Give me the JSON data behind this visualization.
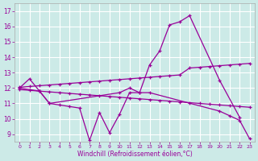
{
  "xlabel": "Windchill (Refroidissement éolien,°C)",
  "background_color": "#cceae7",
  "grid_color": "#ffffff",
  "line_color": "#990099",
  "line1_x": [
    0,
    1,
    2,
    3,
    10,
    11,
    12,
    13,
    14,
    15,
    16,
    17,
    20,
    22
  ],
  "line1_y": [
    12.0,
    12.6,
    11.8,
    11.0,
    11.7,
    12.0,
    11.7,
    13.5,
    14.4,
    16.1,
    16.3,
    16.7,
    12.5,
    10.1
  ],
  "line2_x": [
    0,
    2,
    3,
    4,
    5,
    6,
    7,
    8,
    9,
    10,
    11,
    12,
    13,
    20,
    21,
    22,
    23
  ],
  "line2_y": [
    12.0,
    11.8,
    11.0,
    10.9,
    10.8,
    10.7,
    8.6,
    10.4,
    9.1,
    10.3,
    11.7,
    11.7,
    11.7,
    10.5,
    10.2,
    9.9,
    8.7
  ],
  "line3_x": [
    0,
    1,
    2,
    3,
    4,
    5,
    6,
    7,
    8,
    9,
    10,
    11,
    12,
    13,
    14,
    15,
    16,
    17,
    18,
    19,
    20,
    21,
    22,
    23
  ],
  "line3_y": [
    12.05,
    12.1,
    12.15,
    12.2,
    12.25,
    12.3,
    12.35,
    12.4,
    12.45,
    12.5,
    12.55,
    12.6,
    12.65,
    12.7,
    12.75,
    12.8,
    12.85,
    13.3,
    13.35,
    13.4,
    13.45,
    13.5,
    13.55,
    13.6
  ],
  "line4_x": [
    0,
    1,
    2,
    3,
    4,
    5,
    6,
    7,
    8,
    9,
    10,
    11,
    12,
    13,
    14,
    15,
    16,
    17,
    18,
    19,
    20,
    21,
    22,
    23
  ],
  "line4_y": [
    11.9,
    11.85,
    11.8,
    11.75,
    11.7,
    11.65,
    11.6,
    11.55,
    11.5,
    11.45,
    11.4,
    11.35,
    11.3,
    11.25,
    11.2,
    11.15,
    11.1,
    11.05,
    11.0,
    10.95,
    10.9,
    10.85,
    10.8,
    10.75
  ],
  "ylim": [
    8.5,
    17.5
  ],
  "yticks": [
    9,
    10,
    11,
    12,
    13,
    14,
    15,
    16,
    17
  ],
  "xticks": [
    0,
    1,
    2,
    3,
    4,
    5,
    6,
    7,
    8,
    9,
    10,
    11,
    12,
    13,
    14,
    15,
    16,
    17,
    18,
    19,
    20,
    21,
    22,
    23
  ]
}
